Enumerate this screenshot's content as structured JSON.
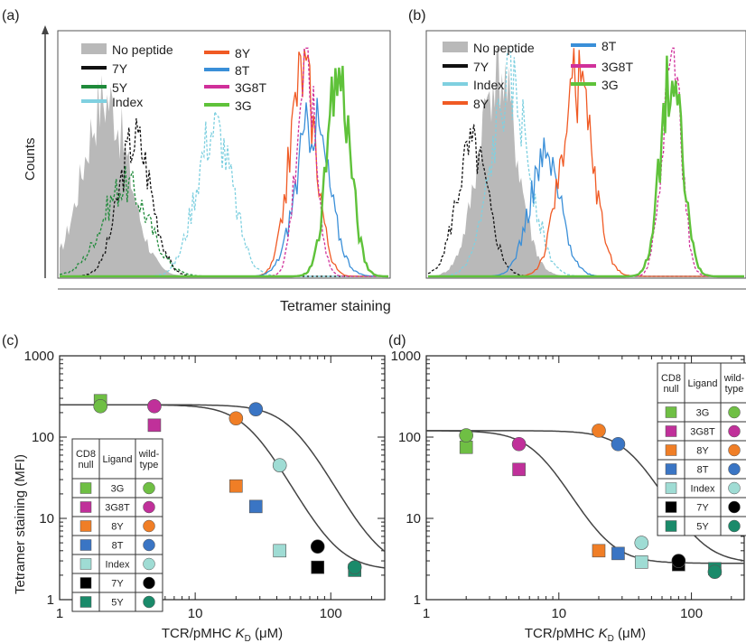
{
  "panels": {
    "a": {
      "label": "(a)"
    },
    "b": {
      "label": "(b)"
    },
    "c": {
      "label": "(c)"
    },
    "d": {
      "label": "(d)"
    }
  },
  "histograms": {
    "ylabel": "Counts",
    "xlabel": "Tetramer staining",
    "a": {
      "legend": [
        {
          "name": "No peptide",
          "color": "#b9b9b9",
          "style": "block"
        },
        {
          "name": "7Y",
          "color": "#111111"
        },
        {
          "name": "5Y",
          "color": "#1f8a3a"
        },
        {
          "name": "Index",
          "color": "#7fd0e0"
        },
        {
          "name": "8Y",
          "color": "#f05a24"
        },
        {
          "name": "8T",
          "color": "#3a8fd8"
        },
        {
          "name": "3G8T",
          "color": "#d0309a"
        },
        {
          "name": "3G",
          "color": "#5fc23a"
        }
      ],
      "peaks": [
        {
          "series": "No peptide",
          "center": 0.14,
          "width": 0.07,
          "height": 0.78,
          "filled": true
        },
        {
          "series": "5Y",
          "center": 0.2,
          "width": 0.07,
          "height": 0.4
        },
        {
          "series": "7Y",
          "center": 0.23,
          "width": 0.05,
          "height": 0.6
        },
        {
          "series": "Index",
          "center": 0.47,
          "width": 0.055,
          "height": 0.65
        },
        {
          "series": "8Y",
          "center": 0.74,
          "width": 0.04,
          "height": 0.9
        },
        {
          "series": "8T",
          "center": 0.77,
          "width": 0.05,
          "height": 0.68
        },
        {
          "series": "3G8T",
          "center": 0.75,
          "width": 0.03,
          "height": 0.92
        },
        {
          "series": "3G",
          "center": 0.85,
          "width": 0.035,
          "height": 0.88
        }
      ]
    },
    "b": {
      "legend": [
        {
          "name": "No peptide",
          "color": "#b9b9b9",
          "style": "block"
        },
        {
          "name": "7Y",
          "color": "#111111"
        },
        {
          "name": "Index",
          "color": "#7fd0e0"
        },
        {
          "name": "8Y",
          "color": "#f05a24"
        },
        {
          "name": "8T",
          "color": "#3a8fd8"
        },
        {
          "name": "3G8T",
          "color": "#d0309a"
        },
        {
          "name": "3G",
          "color": "#5fc23a"
        }
      ],
      "peaks": [
        {
          "series": "No peptide",
          "center": 0.22,
          "width": 0.06,
          "height": 0.9,
          "filled": true
        },
        {
          "series": "7Y",
          "center": 0.14,
          "width": 0.05,
          "height": 0.55
        },
        {
          "series": "Index",
          "center": 0.26,
          "width": 0.06,
          "height": 0.82
        },
        {
          "series": "8T",
          "center": 0.37,
          "width": 0.05,
          "height": 0.5
        },
        {
          "series": "8Y",
          "center": 0.47,
          "width": 0.05,
          "height": 0.85
        },
        {
          "series": "3G8T",
          "center": 0.77,
          "width": 0.03,
          "height": 1.0
        },
        {
          "series": "3G",
          "center": 0.77,
          "width": 0.035,
          "height": 0.88
        }
      ]
    }
  },
  "chart_data": [
    {
      "panel": "c",
      "type": "scatter",
      "xlabel": "TCR/pMHC K_D (μM)",
      "ylabel": "Tetramer staining (MFI)",
      "xscale": "log",
      "yscale": "log",
      "xlim": [
        1,
        250
      ],
      "ylim": [
        1,
        1000
      ],
      "xticks": [
        "1",
        "10",
        "100"
      ],
      "yticks": [
        "1",
        "10",
        "100",
        "1000"
      ],
      "series": [
        {
          "name": "CD8 null",
          "marker": "square",
          "points": [
            {
              "ligand": "3G",
              "x": 2,
              "y": 280
            },
            {
              "ligand": "3G8T",
              "x": 5,
              "y": 140
            },
            {
              "ligand": "8Y",
              "x": 20,
              "y": 25
            },
            {
              "ligand": "8T",
              "x": 28,
              "y": 14
            },
            {
              "ligand": "Index",
              "x": 42,
              "y": 4
            },
            {
              "ligand": "7Y",
              "x": 80,
              "y": 2.5
            },
            {
              "ligand": "5Y",
              "x": 150,
              "y": 2.3
            }
          ]
        },
        {
          "name": "wild-type",
          "marker": "circle",
          "points": [
            {
              "ligand": "3G",
              "x": 2,
              "y": 240
            },
            {
              "ligand": "3G8T",
              "x": 5,
              "y": 240
            },
            {
              "ligand": "8Y",
              "x": 20,
              "y": 170
            },
            {
              "ligand": "8T",
              "x": 28,
              "y": 220
            },
            {
              "ligand": "Index",
              "x": 42,
              "y": 45
            },
            {
              "ligand": "7Y",
              "x": 80,
              "y": 4.5
            },
            {
              "ligand": "5Y",
              "x": 150,
              "y": 2.5
            }
          ]
        }
      ],
      "fits": [
        {
          "top": 250,
          "bottom": 2.3,
          "k50": 25,
          "hill": 3.2
        },
        {
          "top": 250,
          "bottom": 2.3,
          "k50": 52,
          "hill": 3.2
        }
      ]
    },
    {
      "panel": "d",
      "type": "scatter",
      "xlabel": "TCR/pMHC K_D (μM)",
      "ylabel": "",
      "xscale": "log",
      "yscale": "log",
      "xlim": [
        1,
        250
      ],
      "ylim": [
        1,
        1000
      ],
      "xticks": [
        "1",
        "10",
        "100"
      ],
      "yticks": [
        "1",
        "10",
        "100",
        "1000"
      ],
      "series": [
        {
          "name": "CD8 null",
          "marker": "square",
          "points": [
            {
              "ligand": "3G",
              "x": 2,
              "y": 75
            },
            {
              "ligand": "3G8T",
              "x": 5,
              "y": 40
            },
            {
              "ligand": "8Y",
              "x": 20,
              "y": 4
            },
            {
              "ligand": "8T",
              "x": 28,
              "y": 3.7
            },
            {
              "ligand": "Index",
              "x": 42,
              "y": 2.9
            },
            {
              "ligand": "7Y",
              "x": 80,
              "y": 2.7
            },
            {
              "ligand": "5Y",
              "x": 150,
              "y": 2.4
            }
          ]
        },
        {
          "name": "wild-type",
          "marker": "circle",
          "points": [
            {
              "ligand": "3G",
              "x": 2,
              "y": 105
            },
            {
              "ligand": "3G8T",
              "x": 5,
              "y": 82
            },
            {
              "ligand": "8Y",
              "x": 20,
              "y": 120
            },
            {
              "ligand": "8T",
              "x": 28,
              "y": 82
            },
            {
              "ligand": "Index",
              "x": 42,
              "y": 5
            },
            {
              "ligand": "7Y",
              "x": 80,
              "y": 3
            },
            {
              "ligand": "5Y",
              "x": 150,
              "y": 2.2
            }
          ]
        }
      ],
      "fits": [
        {
          "top": 120,
          "bottom": 2.8,
          "k50": 7,
          "hill": 3.2
        },
        {
          "top": 120,
          "bottom": 2.8,
          "k50": 35,
          "hill": 3.2
        }
      ]
    }
  ],
  "scatter_legend": {
    "headers": {
      "null": "CD8 null",
      "ligand": "Ligand",
      "wt": "wild-type"
    },
    "rows": [
      {
        "ligand": "3G",
        "square": "#6fbf44",
        "circle": "#6fbf44"
      },
      {
        "ligand": "3G8T",
        "square": "#c0309a",
        "circle": "#c0309a"
      },
      {
        "ligand": "8Y",
        "square": "#f07e26",
        "circle": "#f07e26"
      },
      {
        "ligand": "8T",
        "square": "#3a75c4",
        "circle": "#3a75c4"
      },
      {
        "ligand": "Index",
        "square": "#9fdcd4",
        "circle": "#9fdcd4"
      },
      {
        "ligand": "7Y",
        "square": "#000000",
        "circle": "#000000"
      },
      {
        "ligand": "5Y",
        "square": "#1a8a6a",
        "circle": "#1a8a6a"
      }
    ]
  }
}
